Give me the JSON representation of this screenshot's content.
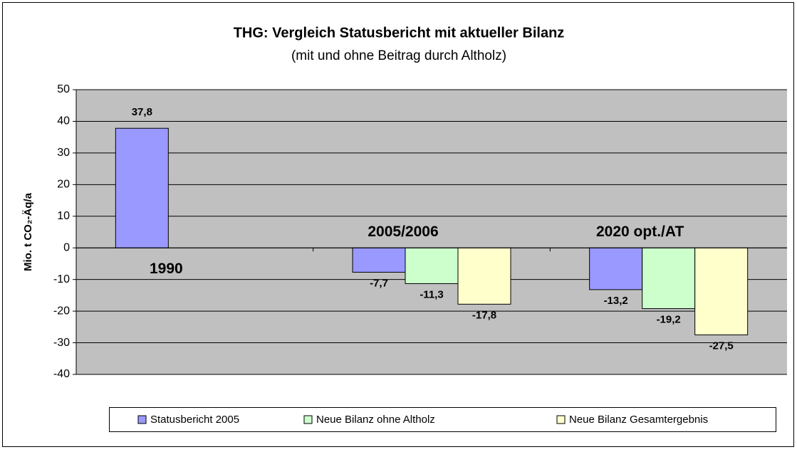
{
  "chart_data": {
    "type": "bar",
    "title": "THG: Vergleich Statusbericht mit aktueller Bilanz",
    "subtitle": "(mit und ohne Beitrag durch Altholz)",
    "y_label": "Mio. t CO₂-Äq/a",
    "categories": [
      "1990",
      "2005/2006",
      "2020 opt./AT"
    ],
    "series": [
      {
        "name": "Statusbericht 2005",
        "color": "#9999ff",
        "values": [
          37.8,
          -7.7,
          -13.2
        ],
        "value_labels": [
          "37,8",
          "-7,7",
          "-13,2"
        ]
      },
      {
        "name": "Neue Bilanz ohne Altholz",
        "color": "#ccffcc",
        "values": [
          null,
          -11.3,
          -19.2
        ],
        "value_labels": [
          null,
          "-11,3",
          "-19,2"
        ]
      },
      {
        "name": "Neue Bilanz Gesamtergebnis",
        "color": "#ffffcc",
        "values": [
          null,
          -17.8,
          -27.5
        ],
        "value_labels": [
          null,
          "-17,8",
          "-27,5"
        ]
      }
    ],
    "ylim": [
      -40,
      50
    ],
    "yticks": [
      -40,
      -30,
      -20,
      -10,
      0,
      10,
      20,
      30,
      40,
      50
    ],
    "grid": true,
    "legend": "bottom"
  }
}
